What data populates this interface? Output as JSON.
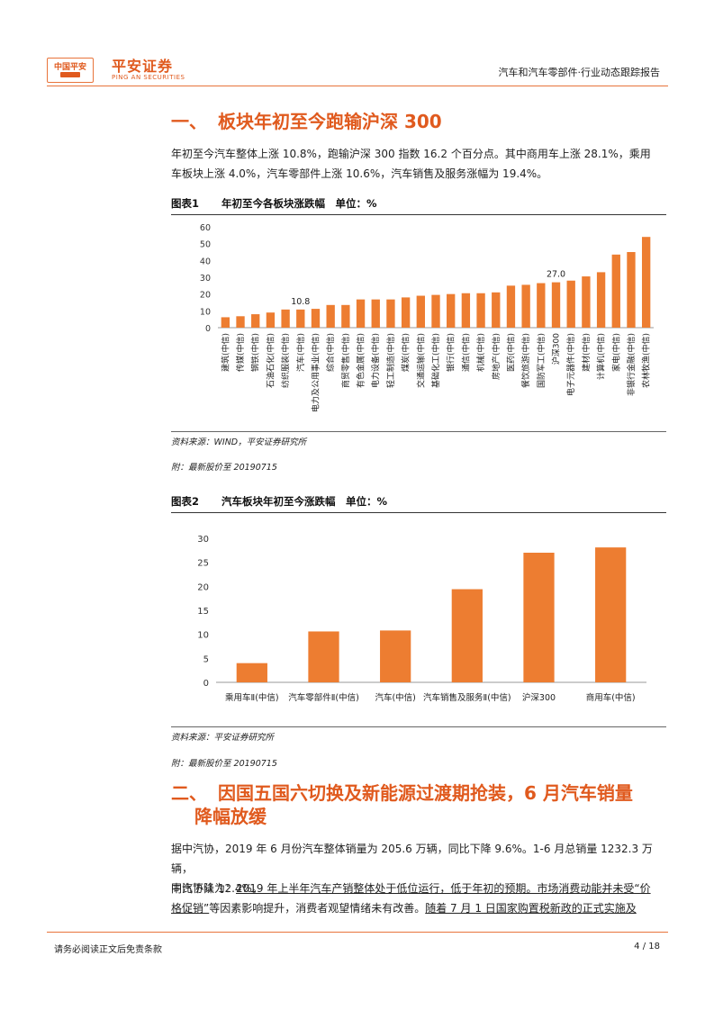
{
  "header": {
    "logo_box_text": "中国平安",
    "logo_cn": "平安证券",
    "logo_en": "PING AN SECURITIES",
    "report_type": "汽车和汽车零部件·行业动态跟踪报告"
  },
  "section1": {
    "num": "一、",
    "title": "板块年初至今跑输沪深 300",
    "para_line1": "年初至今汽车整体上涨 10.8%，跑输沪深 300 指数 16.2 个百分点。其中商用车上涨 28.1%，乘用",
    "para_line2": "车板块上涨 4.0%，汽车零部件上涨 10.6%，汽车销售及服务涨幅为 19.4%。"
  },
  "figure1": {
    "label": "图表1",
    "title": "年初至今各板块涨跌幅　单位：%",
    "source": "资料来源：WIND，平安证券研究所",
    "note": "附：最新股价至 20190715"
  },
  "figure2": {
    "label": "图表2",
    "title": "汽车板块年初至今涨跌幅　单位：%",
    "source": "资料来源：平安证券研究所",
    "note": "附：最新股价至 20190715"
  },
  "section2": {
    "num": "二、",
    "title_line1": "因国五国六切换及新能源过渡期抢装，6 月汽车销量",
    "title_line2": "降幅放缓",
    "para1_line1": "据中汽协，2019 年 6 月份汽车整体销量为 205.6 万辆，同比下降 9.6%。1-6 月总销量 1232.3 万辆，",
    "para1_line2": "同比下降 12.4%。",
    "para2_prefix": "中汽协认为：",
    "para2_line1_u": "2019 年上半年汽车产销整体处于低位运行，低于年初的预期。市场消费动能并未受“价",
    "para2_line2_u": "格促销”",
    "para2_line2_rest": "等因素影响提升，消费者观望情绪未有改善。",
    "para2_line2_u2": "随着 7 月 1 日国家购置税新政的正式实施及"
  },
  "footer": {
    "disclaimer": "请务必阅读正文后免责条款",
    "page": "4 / 18"
  },
  "chart_data": [
    {
      "type": "bar",
      "color": "#ed7d31",
      "categories": [
        "建筑(中信)",
        "传媒(中信)",
        "钢铁(中信)",
        "石油石化(中信)",
        "纺织服装(中信)",
        "汽车(中信)",
        "电力及公用事业(中信)",
        "综合(中信)",
        "商贸零售(中信)",
        "有色金属(中信)",
        "电力设备(中信)",
        "轻工制造(中信)",
        "煤炭(中信)",
        "交通运输(中信)",
        "基础化工(中信)",
        "银行(中信)",
        "通信(中信)",
        "机械(中信)",
        "房地产(中信)",
        "医药(中信)",
        "餐饮旅游(中信)",
        "国防军工(中信)",
        "沪深300",
        "电子元器件(中信)",
        "建材(中信)",
        "计算机(中信)",
        "家电(中信)",
        "非银行金融(中信)",
        "农林牧渔(中信)"
      ],
      "values": [
        6.2,
        6.8,
        8.0,
        9.0,
        10.8,
        10.8,
        11.2,
        13.5,
        13.5,
        16.8,
        16.8,
        16.8,
        18.0,
        19.0,
        19.5,
        20.0,
        20.5,
        20.5,
        21.0,
        25.0,
        25.5,
        26.5,
        27.0,
        28.0,
        30.5,
        33.0,
        43.5,
        45.0,
        54.0
      ],
      "data_labels": [
        {
          "index": 5,
          "text": "10.8"
        },
        {
          "index": 22,
          "text": "27.0"
        }
      ],
      "yticks": [
        "0",
        "10",
        "20",
        "30",
        "40",
        "50",
        "60"
      ],
      "ylim": [
        0,
        60
      ]
    },
    {
      "type": "bar",
      "color": "#ed7d31",
      "categories": [
        "乘用车Ⅱ(中信)",
        "汽车零部件Ⅱ(中信)",
        "汽车(中信)",
        "汽车销售及服务Ⅱ(中信)",
        "沪深300",
        "商用车(中信)"
      ],
      "values": [
        4.0,
        10.6,
        10.8,
        19.4,
        27.0,
        28.1
      ],
      "yticks": [
        "0",
        "5",
        "10",
        "15",
        "20",
        "25",
        "30"
      ],
      "ylim": [
        0,
        30
      ]
    }
  ]
}
